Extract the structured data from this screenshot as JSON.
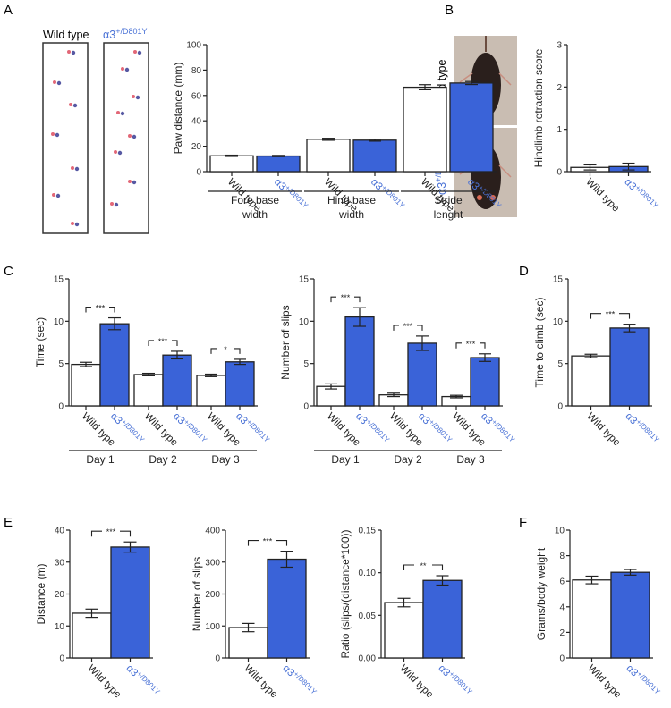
{
  "colors": {
    "wild_type_fill": "#ffffff",
    "mutant_fill": "#3a63d8",
    "mutant_label": "#4a72d6",
    "axis": "#222222",
    "photo_bg": "#c7bbb0",
    "mouse": "#2a1f1c"
  },
  "groups": {
    "wild_type": "Wild type",
    "mutant_prefix": "α3",
    "mutant_sup": "+/D801Y"
  },
  "panels": {
    "A": {
      "letter": "A",
      "footprint_labels": [
        "Wild type",
        "α3+/D801Y"
      ]
    },
    "B": {
      "letter": "B",
      "photo_labels": [
        "Wild type",
        "α3+/D801Y"
      ]
    },
    "C": {
      "letter": "C"
    },
    "D": {
      "letter": "D"
    },
    "E": {
      "letter": "E"
    },
    "F": {
      "letter": "F"
    }
  },
  "chart_data": [
    {
      "id": "A",
      "type": "bar",
      "title": "",
      "ylabel": "Paw distance (mm)",
      "ylim": [
        0,
        100
      ],
      "yticks": [
        0,
        20,
        40,
        60,
        80,
        100
      ],
      "categories": [
        "Fore base width",
        "Hind base width",
        "Stride lenght"
      ],
      "category_lines": [
        [
          "Fore base",
          "width"
        ],
        [
          "Hind base",
          "width"
        ],
        [
          "Stride",
          "lenght"
        ]
      ],
      "series": [
        {
          "name": "Wild type",
          "values": [
            12.5,
            25.5,
            66.5
          ],
          "errors": [
            0.5,
            0.8,
            2.0
          ]
        },
        {
          "name": "α3+/D801Y",
          "values": [
            12.3,
            24.8,
            69.8
          ],
          "errors": [
            0.5,
            0.8,
            1.2
          ]
        }
      ],
      "significance": []
    },
    {
      "id": "B",
      "type": "bar",
      "title": "",
      "ylabel": "Hindlimb retraction score",
      "ylim": [
        0,
        3
      ],
      "yticks": [
        0,
        1,
        2,
        3
      ],
      "categories": [
        ""
      ],
      "category_lines": [],
      "series": [
        {
          "name": "Wild type",
          "values": [
            0.1
          ],
          "errors": [
            0.06
          ]
        },
        {
          "name": "α3+/D801Y",
          "values": [
            0.12
          ],
          "errors": [
            0.08
          ]
        }
      ],
      "significance": []
    },
    {
      "id": "C1",
      "type": "bar",
      "title": "",
      "ylabel": "Time (sec)",
      "ylim": [
        0,
        15
      ],
      "yticks": [
        0,
        5,
        10,
        15
      ],
      "categories": [
        "Day 1",
        "Day 2",
        "Day 3"
      ],
      "category_lines": [
        [
          "Day 1"
        ],
        [
          "Day 2"
        ],
        [
          "Day 3"
        ]
      ],
      "series": [
        {
          "name": "Wild type",
          "values": [
            4.9,
            3.7,
            3.6
          ],
          "errors": [
            0.25,
            0.15,
            0.15
          ]
        },
        {
          "name": "α3+/D801Y",
          "values": [
            9.7,
            6.0,
            5.2
          ],
          "errors": [
            0.7,
            0.45,
            0.3
          ]
        }
      ],
      "significance": [
        "***",
        "***",
        "*"
      ]
    },
    {
      "id": "C2",
      "type": "bar",
      "title": "",
      "ylabel": "Number of slips",
      "ylim": [
        0,
        15
      ],
      "yticks": [
        0,
        5,
        10,
        15
      ],
      "categories": [
        "Day 1",
        "Day 2",
        "Day 3"
      ],
      "category_lines": [
        [
          "Day 1"
        ],
        [
          "Day 2"
        ],
        [
          "Day 3"
        ]
      ],
      "series": [
        {
          "name": "Wild type",
          "values": [
            2.3,
            1.3,
            1.1
          ],
          "errors": [
            0.3,
            0.2,
            0.15
          ]
        },
        {
          "name": "α3+/D801Y",
          "values": [
            10.5,
            7.4,
            5.7
          ],
          "errors": [
            1.1,
            0.85,
            0.45
          ]
        }
      ],
      "significance": [
        "***",
        "***",
        "***"
      ]
    },
    {
      "id": "D",
      "type": "bar",
      "title": "",
      "ylabel": "Time to climb (sec)",
      "ylim": [
        0,
        15
      ],
      "yticks": [
        0,
        5,
        10,
        15
      ],
      "categories": [
        ""
      ],
      "category_lines": [],
      "series": [
        {
          "name": "Wild type",
          "values": [
            5.9
          ],
          "errors": [
            0.2
          ]
        },
        {
          "name": "α3+/D801Y",
          "values": [
            9.2
          ],
          "errors": [
            0.45
          ]
        }
      ],
      "significance": [
        "***"
      ]
    },
    {
      "id": "E1",
      "type": "bar",
      "title": "",
      "ylabel": "Distance (m)",
      "ylim": [
        0,
        40
      ],
      "yticks": [
        0,
        10,
        20,
        30,
        40
      ],
      "categories": [
        ""
      ],
      "category_lines": [],
      "series": [
        {
          "name": "Wild type",
          "values": [
            14.0
          ],
          "errors": [
            1.3
          ]
        },
        {
          "name": "α3+/D801Y",
          "values": [
            34.7
          ],
          "errors": [
            1.6
          ]
        }
      ],
      "significance": [
        "***"
      ]
    },
    {
      "id": "E2",
      "type": "bar",
      "title": "",
      "ylabel": "Number of slips",
      "ylim": [
        0,
        400
      ],
      "yticks": [
        0,
        100,
        200,
        300,
        400
      ],
      "categories": [
        ""
      ],
      "category_lines": [],
      "series": [
        {
          "name": "Wild type",
          "values": [
            95
          ],
          "errors": [
            13
          ]
        },
        {
          "name": "α3+/D801Y",
          "values": [
            309
          ],
          "errors": [
            25
          ]
        }
      ],
      "significance": [
        "***"
      ]
    },
    {
      "id": "E3",
      "type": "bar",
      "title": "",
      "ylabel": "Ratio (slips/(distance*100))",
      "ylim": [
        0,
        0.15
      ],
      "yticks": [
        0.0,
        0.05,
        0.1,
        0.15
      ],
      "ytick_labels": [
        "0.00",
        "0.05",
        "0.10",
        "0.15"
      ],
      "categories": [
        ""
      ],
      "category_lines": [],
      "series": [
        {
          "name": "Wild type",
          "values": [
            0.065
          ],
          "errors": [
            0.005
          ]
        },
        {
          "name": "α3+/D801Y",
          "values": [
            0.091
          ],
          "errors": [
            0.0055
          ]
        }
      ],
      "significance": [
        "**"
      ]
    },
    {
      "id": "F",
      "type": "bar",
      "title": "",
      "ylabel": "Grams/body weight",
      "ylim": [
        0,
        10
      ],
      "yticks": [
        0,
        2,
        4,
        6,
        8,
        10
      ],
      "categories": [
        ""
      ],
      "category_lines": [],
      "series": [
        {
          "name": "Wild type",
          "values": [
            6.1
          ],
          "errors": [
            0.3
          ]
        },
        {
          "name": "α3+/D801Y",
          "values": [
            6.7
          ],
          "errors": [
            0.22
          ]
        }
      ],
      "significance": []
    }
  ]
}
